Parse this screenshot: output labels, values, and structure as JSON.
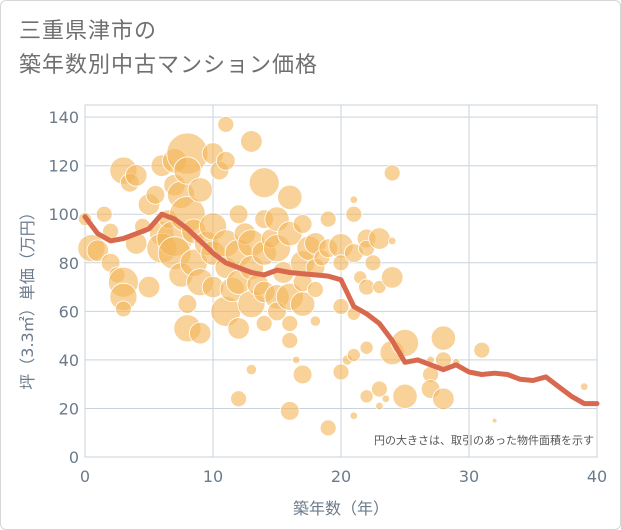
{
  "title_line1": "三重県津市の",
  "title_line2": "築年数別中古マンション価格",
  "chart_data": {
    "type": "scatter",
    "xlabel": "築年数（年）",
    "ylabel": "坪（3.3㎡）単価（万円）",
    "xlim": [
      0,
      40
    ],
    "ylim": [
      0,
      145
    ],
    "xticks": [
      "0",
      "10",
      "20",
      "30",
      "40"
    ],
    "yticks": [
      "0",
      "20",
      "40",
      "60",
      "80",
      "100",
      "120",
      "140"
    ],
    "xtick_values": [
      0,
      10,
      20,
      30,
      40
    ],
    "ytick_values": [
      0,
      20,
      40,
      60,
      80,
      100,
      120,
      140
    ],
    "grid": true,
    "note": "円の大きさは、取引のあった物件面積を示す",
    "colors": {
      "bubble": "#f3b75b",
      "line": "#d8694f",
      "grid": "#c9d3dc",
      "text": "#6b7b8c"
    },
    "scatter_series": {
      "name": "",
      "points": [
        {
          "x": 0,
          "y": 98,
          "s": 4
        },
        {
          "x": 0.5,
          "y": 86,
          "s": 9
        },
        {
          "x": 1,
          "y": 85,
          "s": 7
        },
        {
          "x": 1.5,
          "y": 100,
          "s": 5
        },
        {
          "x": 2,
          "y": 80,
          "s": 6
        },
        {
          "x": 2,
          "y": 93,
          "s": 5
        },
        {
          "x": 2.5,
          "y": 75,
          "s": 5
        },
        {
          "x": 3,
          "y": 118,
          "s": 9
        },
        {
          "x": 3,
          "y": 72,
          "s": 10
        },
        {
          "x": 3,
          "y": 66,
          "s": 9
        },
        {
          "x": 3,
          "y": 61,
          "s": 5
        },
        {
          "x": 3.5,
          "y": 113,
          "s": 6
        },
        {
          "x": 4,
          "y": 116,
          "s": 7
        },
        {
          "x": 4,
          "y": 88,
          "s": 7
        },
        {
          "x": 4.5,
          "y": 95,
          "s": 5
        },
        {
          "x": 5,
          "y": 104,
          "s": 7
        },
        {
          "x": 5,
          "y": 70,
          "s": 7
        },
        {
          "x": 5.5,
          "y": 108,
          "s": 6
        },
        {
          "x": 6,
          "y": 120,
          "s": 7
        },
        {
          "x": 6,
          "y": 92,
          "s": 8
        },
        {
          "x": 6,
          "y": 86,
          "s": 10
        },
        {
          "x": 6.5,
          "y": 98,
          "s": 6
        },
        {
          "x": 7,
          "y": 122,
          "s": 8
        },
        {
          "x": 7,
          "y": 112,
          "s": 7
        },
        {
          "x": 7,
          "y": 90,
          "s": 12
        },
        {
          "x": 7,
          "y": 84,
          "s": 11
        },
        {
          "x": 7.5,
          "y": 108,
          "s": 9
        },
        {
          "x": 7.5,
          "y": 75,
          "s": 8
        },
        {
          "x": 8,
          "y": 125,
          "s": 14
        },
        {
          "x": 8,
          "y": 118,
          "s": 9
        },
        {
          "x": 8,
          "y": 100,
          "s": 12
        },
        {
          "x": 8,
          "y": 53,
          "s": 9
        },
        {
          "x": 8,
          "y": 63,
          "s": 6
        },
        {
          "x": 8.5,
          "y": 93,
          "s": 8
        },
        {
          "x": 8.5,
          "y": 80,
          "s": 9
        },
        {
          "x": 9,
          "y": 110,
          "s": 8
        },
        {
          "x": 9,
          "y": 72,
          "s": 9
        },
        {
          "x": 9,
          "y": 51,
          "s": 7
        },
        {
          "x": 9.5,
          "y": 88,
          "s": 8
        },
        {
          "x": 10,
          "y": 125,
          "s": 7
        },
        {
          "x": 10,
          "y": 95,
          "s": 9
        },
        {
          "x": 10,
          "y": 84,
          "s": 8
        },
        {
          "x": 10,
          "y": 70,
          "s": 7
        },
        {
          "x": 10.5,
          "y": 118,
          "s": 6
        },
        {
          "x": 11,
          "y": 137,
          "s": 5
        },
        {
          "x": 11,
          "y": 122,
          "s": 6
        },
        {
          "x": 11,
          "y": 88,
          "s": 9
        },
        {
          "x": 11,
          "y": 78,
          "s": 7
        },
        {
          "x": 11,
          "y": 60,
          "s": 10
        },
        {
          "x": 11.5,
          "y": 69,
          "s": 8
        },
        {
          "x": 12,
          "y": 100,
          "s": 6
        },
        {
          "x": 12,
          "y": 84,
          "s": 9
        },
        {
          "x": 12,
          "y": 72,
          "s": 8
        },
        {
          "x": 12,
          "y": 53,
          "s": 7
        },
        {
          "x": 12,
          "y": 24,
          "s": 5
        },
        {
          "x": 12.5,
          "y": 92,
          "s": 7
        },
        {
          "x": 13,
          "y": 130,
          "s": 7
        },
        {
          "x": 13,
          "y": 88,
          "s": 9
        },
        {
          "x": 13,
          "y": 78,
          "s": 8
        },
        {
          "x": 13,
          "y": 63,
          "s": 9
        },
        {
          "x": 13,
          "y": 36,
          "s": 3
        },
        {
          "x": 13.5,
          "y": 71,
          "s": 7
        },
        {
          "x": 14,
          "y": 113,
          "s": 10
        },
        {
          "x": 14,
          "y": 98,
          "s": 6
        },
        {
          "x": 14,
          "y": 84,
          "s": 8
        },
        {
          "x": 14,
          "y": 68,
          "s": 7
        },
        {
          "x": 14,
          "y": 55,
          "s": 5
        },
        {
          "x": 14.5,
          "y": 90,
          "s": 6
        },
        {
          "x": 15,
          "y": 98,
          "s": 8
        },
        {
          "x": 15,
          "y": 86,
          "s": 9
        },
        {
          "x": 15,
          "y": 66,
          "s": 8
        },
        {
          "x": 15,
          "y": 60,
          "s": 6
        },
        {
          "x": 15.5,
          "y": 76,
          "s": 7
        },
        {
          "x": 16,
          "y": 107,
          "s": 8
        },
        {
          "x": 16,
          "y": 92,
          "s": 8
        },
        {
          "x": 16,
          "y": 66,
          "s": 9
        },
        {
          "x": 16,
          "y": 55,
          "s": 5
        },
        {
          "x": 16,
          "y": 48,
          "s": 5
        },
        {
          "x": 16,
          "y": 19,
          "s": 6
        },
        {
          "x": 16.5,
          "y": 40,
          "s": 2
        },
        {
          "x": 17,
          "y": 96,
          "s": 6
        },
        {
          "x": 17,
          "y": 80,
          "s": 8
        },
        {
          "x": 17,
          "y": 72,
          "s": 6
        },
        {
          "x": 17,
          "y": 63,
          "s": 8
        },
        {
          "x": 17,
          "y": 34,
          "s": 6
        },
        {
          "x": 17.5,
          "y": 86,
          "s": 8
        },
        {
          "x": 18,
          "y": 88,
          "s": 7
        },
        {
          "x": 18,
          "y": 78,
          "s": 6
        },
        {
          "x": 18,
          "y": 69,
          "s": 5
        },
        {
          "x": 18,
          "y": 56,
          "s": 3
        },
        {
          "x": 18.5,
          "y": 82,
          "s": 5
        },
        {
          "x": 19,
          "y": 98,
          "s": 5
        },
        {
          "x": 19,
          "y": 86,
          "s": 6
        },
        {
          "x": 19,
          "y": 12,
          "s": 5
        },
        {
          "x": 20,
          "y": 87,
          "s": 8
        },
        {
          "x": 20,
          "y": 80,
          "s": 5
        },
        {
          "x": 20,
          "y": 62,
          "s": 5
        },
        {
          "x": 20,
          "y": 35,
          "s": 5
        },
        {
          "x": 20.5,
          "y": 40,
          "s": 3
        },
        {
          "x": 21,
          "y": 106,
          "s": 2
        },
        {
          "x": 21,
          "y": 100,
          "s": 5
        },
        {
          "x": 21,
          "y": 84,
          "s": 6
        },
        {
          "x": 21,
          "y": 59,
          "s": 4
        },
        {
          "x": 21,
          "y": 42,
          "s": 4
        },
        {
          "x": 21,
          "y": 17,
          "s": 2
        },
        {
          "x": 21.5,
          "y": 74,
          "s": 4
        },
        {
          "x": 22,
          "y": 90,
          "s": 6
        },
        {
          "x": 22,
          "y": 86,
          "s": 5
        },
        {
          "x": 22,
          "y": 70,
          "s": 5
        },
        {
          "x": 22,
          "y": 45,
          "s": 4
        },
        {
          "x": 22,
          "y": 25,
          "s": 4
        },
        {
          "x": 22.5,
          "y": 80,
          "s": 5
        },
        {
          "x": 23,
          "y": 90,
          "s": 7
        },
        {
          "x": 23,
          "y": 70,
          "s": 4
        },
        {
          "x": 23,
          "y": 28,
          "s": 5
        },
        {
          "x": 23,
          "y": 21,
          "s": 2
        },
        {
          "x": 23.5,
          "y": 24,
          "s": 2
        },
        {
          "x": 24,
          "y": 117,
          "s": 5
        },
        {
          "x": 24,
          "y": 89,
          "s": 2
        },
        {
          "x": 24,
          "y": 74,
          "s": 7
        },
        {
          "x": 24,
          "y": 43,
          "s": 8
        },
        {
          "x": 25,
          "y": 47,
          "s": 9
        },
        {
          "x": 25,
          "y": 25,
          "s": 8
        },
        {
          "x": 27,
          "y": 40,
          "s": 2
        },
        {
          "x": 27,
          "y": 34,
          "s": 5
        },
        {
          "x": 27,
          "y": 28,
          "s": 6
        },
        {
          "x": 28,
          "y": 49,
          "s": 8
        },
        {
          "x": 28,
          "y": 40,
          "s": 5
        },
        {
          "x": 28,
          "y": 24,
          "s": 7
        },
        {
          "x": 29,
          "y": 39,
          "s": 2
        },
        {
          "x": 31,
          "y": 44,
          "s": 5
        },
        {
          "x": 32,
          "y": 15,
          "s": 1
        },
        {
          "x": 39,
          "y": 29,
          "s": 2
        }
      ]
    },
    "line_series": {
      "name": "",
      "x": [
        0,
        1,
        2,
        3,
        4,
        5,
        6,
        7,
        8,
        9,
        10,
        11,
        12,
        13,
        14,
        15,
        16,
        17,
        18,
        19,
        20,
        21,
        22,
        23,
        24,
        25,
        26,
        27,
        28,
        29,
        30,
        31,
        32,
        33,
        34,
        35,
        36,
        37,
        38,
        39,
        40
      ],
      "y": [
        99,
        92,
        89,
        90,
        92,
        94,
        100,
        98,
        94,
        89,
        84,
        80,
        78,
        76,
        75,
        77,
        76,
        75.5,
        75,
        74.5,
        73,
        62,
        59,
        55,
        48,
        39,
        40,
        38,
        36,
        38,
        35,
        34,
        34.5,
        34,
        32,
        31.5,
        33,
        29,
        25,
        22,
        22
      ]
    }
  }
}
